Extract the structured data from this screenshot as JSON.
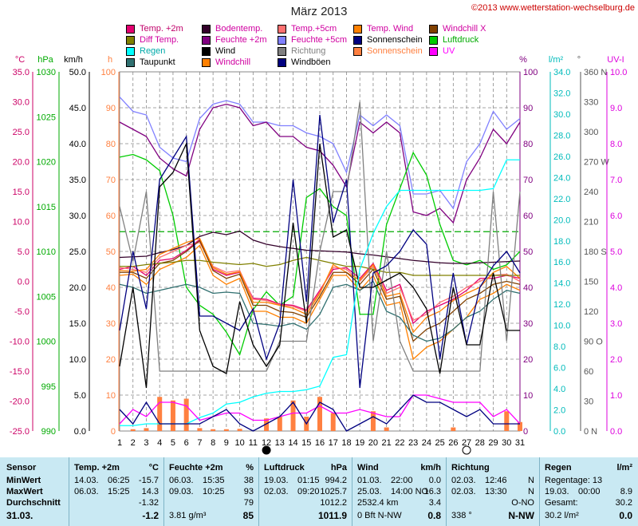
{
  "title": "März 2013",
  "copyright": "©2013 www.wetterstation-wechselburg.de",
  "legend": [
    {
      "label": "Temp. +2m",
      "color": "#e3006f",
      "text": "#c0006a"
    },
    {
      "label": "Bodentemp.",
      "color": "#33002a",
      "text": "#d000a0"
    },
    {
      "label": "Temp.+5cm",
      "color": "#ff7070",
      "text": "#d000a0"
    },
    {
      "label": "Temp. Wind",
      "color": "#ff8000",
      "text": "#d000a0"
    },
    {
      "label": "Windchill X",
      "color": "#804000",
      "text": "#d000a0"
    },
    {
      "label": "Diff Temp.",
      "color": "#808000",
      "text": "#d000a0"
    },
    {
      "label": "Feuchte +2m",
      "color": "#800080",
      "text": "#d000a0"
    },
    {
      "label": "Feuchte +5cm",
      "color": "#8080ff",
      "text": "#d000a0"
    },
    {
      "label": "Sonnenschein",
      "color": "#000080",
      "text": "#000000"
    },
    {
      "label": "Luftdruck",
      "color": "#00cc00",
      "text": "#00aa00"
    },
    {
      "label": "Regen",
      "color": "#00ffff",
      "text": "#00aaaa"
    },
    {
      "label": "Wind",
      "color": "#000000",
      "text": "#000000"
    },
    {
      "label": "Richtung",
      "color": "#808080",
      "text": "#808080"
    },
    {
      "label": "Sonnenschein",
      "color": "#ff8040",
      "text": "#ff8040"
    },
    {
      "label": "UV",
      "color": "#ff00ff",
      "text": "#ff00ff"
    },
    {
      "label": "Taupunkt",
      "color": "#307070",
      "text": "#000000"
    },
    {
      "label": "Windchill",
      "color": "#ff8000",
      "text": "#d000a0"
    },
    {
      "label": "Windböen",
      "color": "#000080",
      "text": "#000000"
    }
  ],
  "axis_headers": {
    "temp": "°C",
    "hpa": "hPa",
    "kmh": "km/h",
    "h": "h",
    "pct": "%",
    "lm2": "l/m²",
    "deg": "°",
    "uv": "UV-I"
  },
  "chart_data": {
    "type": "line",
    "x": [
      1,
      2,
      3,
      4,
      5,
      6,
      7,
      8,
      9,
      10,
      11,
      12,
      13,
      14,
      15,
      16,
      17,
      18,
      19,
      20,
      21,
      22,
      23,
      24,
      25,
      26,
      27,
      28,
      29,
      30,
      31
    ],
    "xlabel": "",
    "axes": {
      "temp": {
        "label": "°C",
        "range": [
          -25,
          35
        ],
        "ticks": [
          "35.0",
          "30.0",
          "25.0",
          "20.0",
          "15.0",
          "10.0",
          "5.0",
          "0.0",
          "-5.0",
          "-10.0",
          "-15.0",
          "-20.0",
          "-25.0"
        ]
      },
      "hpa": {
        "label": "hPa",
        "range": [
          990,
          1030
        ],
        "ticks": [
          "1030",
          "1025",
          "1020",
          "1015",
          "1010",
          "1005",
          "1000",
          "995",
          "990"
        ]
      },
      "kmh": {
        "label": "km/h",
        "range": [
          0,
          50
        ],
        "ticks": [
          "50.0",
          "45.0",
          "40.0",
          "35.0",
          "30.0",
          "25.0",
          "20.0",
          "15.0",
          "10.0",
          "5.0",
          "0.0"
        ]
      },
      "h": {
        "label": "h",
        "range": [
          0,
          100
        ],
        "ticks": [
          "100",
          "90",
          "80",
          "70",
          "60",
          "50",
          "40",
          "30",
          "20",
          "10",
          "0"
        ]
      },
      "pct": {
        "label": "%",
        "range": [
          0,
          100
        ],
        "ticks": [
          "100",
          "90",
          "80",
          "70",
          "60",
          "50",
          "40",
          "30",
          "20",
          "10",
          "0"
        ]
      },
      "lm2": {
        "label": "l/m²",
        "range": [
          0,
          40
        ],
        "ticks": [
          "34.0",
          "32.0",
          "30.0",
          "28.0",
          "26.0",
          "24.0",
          "22.0",
          "20.0",
          "18.0",
          "16.0",
          "14.0",
          "12.0",
          "10.0",
          "8.0",
          "6.0",
          "4.0",
          "2.0",
          "0.0"
        ]
      },
      "deg": {
        "label": "°",
        "range": [
          0,
          360
        ],
        "ticks": [
          "360 N",
          "330",
          "300",
          "270 W",
          "240",
          "210",
          "180 S",
          "150",
          "120",
          "90 O",
          "60",
          "30",
          "0 N"
        ]
      },
      "uv": {
        "label": "UV-I",
        "range": [
          0,
          10
        ],
        "ticks": [
          "10.0",
          "9.0",
          "8.0",
          "7.0",
          "6.0",
          "5.0",
          "4.0",
          "3.0",
          "2.0",
          "1.0",
          "0.0"
        ]
      }
    },
    "reference_line_hpa": 1012.2,
    "series": [
      {
        "name": "Feuchte +5cm",
        "axis": "pct",
        "color": "#8080ff",
        "values": [
          93,
          89,
          88,
          79,
          76,
          75,
          87,
          91,
          92,
          91,
          86,
          86,
          85,
          85,
          83,
          82,
          80,
          72,
          88,
          85,
          88,
          85,
          66,
          66,
          67,
          62,
          75,
          80,
          89,
          84,
          87
        ]
      },
      {
        "name": "Feuchte +2m",
        "axis": "pct",
        "color": "#800080",
        "values": [
          86,
          84,
          82,
          76,
          73,
          71,
          84,
          90,
          91,
          90,
          85,
          86,
          82,
          82,
          79,
          78,
          74,
          68,
          86,
          83,
          86,
          83,
          61,
          60,
          62,
          58,
          70,
          76,
          84,
          80,
          86
        ]
      },
      {
        "name": "Luftdruck",
        "axis": "hpa",
        "color": "#00cc00",
        "values": [
          1020.5,
          1020.8,
          1020.2,
          1019.0,
          1014.0,
          1006.0,
          1004.0,
          1003.0,
          1001.0,
          998.5,
          1003.5,
          1005.5,
          1004.0,
          1005.0,
          1016.0,
          1017.0,
          1015.0,
          1014.0,
          1003.0,
          1003.0,
          1013.0,
          1017.0,
          1021.0,
          1018.5,
          1013.0,
          1009.0,
          1008.5,
          1009.0,
          1008.0,
          1008.5,
          1010.0
        ]
      },
      {
        "name": "Bodentemp.",
        "axis": "temp",
        "color": "#33002a",
        "values": [
          4.0,
          4.1,
          4.2,
          4.8,
          5.3,
          6.0,
          7.5,
          8.2,
          7.8,
          8.4,
          6.9,
          6.2,
          5.8,
          5.5,
          5.2,
          5.1,
          5.0,
          4.9,
          4.6,
          4.4,
          4.1,
          3.8,
          3.5,
          3.3,
          3.1,
          3.0,
          3.0,
          3.1,
          3.2,
          3.3,
          3.4
        ]
      },
      {
        "name": "Temp. +2m",
        "axis": "temp",
        "color": "#e3006f",
        "values": [
          2.0,
          2.5,
          1.0,
          3.5,
          3.8,
          5.2,
          7.0,
          2.0,
          1.0,
          1.5,
          -2.8,
          -3.0,
          -3.8,
          -4.0,
          -4.8,
          -1.5,
          2.0,
          2.3,
          0.5,
          3.0,
          -1.5,
          -0.5,
          -7.0,
          -5.0,
          -4.0,
          -3.0,
          -1.5,
          0.5,
          0.5,
          1.0,
          0.5
        ]
      },
      {
        "name": "Temp.+5cm",
        "axis": "temp",
        "color": "#ff7070",
        "values": [
          2.3,
          2.0,
          1.5,
          4.0,
          5.0,
          6.0,
          6.5,
          2.5,
          1.5,
          1.8,
          -3.0,
          -3.2,
          -3.9,
          -4.2,
          -5.0,
          -1.8,
          2.4,
          2.0,
          0.0,
          2.5,
          -2.0,
          -1.0,
          -6.5,
          -5.5,
          -3.5,
          -2.5,
          -1.0,
          0.0,
          1.0,
          1.2,
          0.0
        ]
      },
      {
        "name": "Temp. Wind",
        "axis": "temp",
        "color": "#ff8000",
        "values": [
          1.8,
          1.7,
          2.0,
          4.5,
          5.5,
          6.5,
          7.2,
          2.3,
          1.2,
          1.6,
          -3.5,
          -3.5,
          -4.0,
          -4.5,
          -5.5,
          -2.0,
          2.8,
          1.5,
          0.2,
          2.8,
          -2.5,
          -2.0,
          -8.5,
          -6.0,
          -5.0,
          -3.2,
          -2.0,
          -1.0,
          1.5,
          2.5,
          0.5
        ]
      },
      {
        "name": "Windchill X",
        "axis": "temp",
        "color": "#804000",
        "values": [
          1.5,
          1.5,
          0.5,
          3.0,
          3.5,
          5.0,
          6.8,
          1.8,
          0.5,
          1.2,
          -4.0,
          -4.0,
          -5.0,
          -5.2,
          -6.0,
          -2.5,
          1.5,
          1.5,
          -0.5,
          2.0,
          -3.0,
          -2.5,
          -10.0,
          -8.0,
          -7.0,
          -5.0,
          -3.0,
          -2.0,
          -0.5,
          0.0,
          -0.5
        ]
      },
      {
        "name": "Windchill",
        "axis": "temp",
        "color": "#ff8000",
        "values": [
          1.0,
          1.2,
          -0.5,
          2.0,
          3.0,
          4.0,
          6.0,
          1.0,
          -0.5,
          0.5,
          -5.0,
          -5.0,
          -6.0,
          -6.0,
          -7.0,
          -3.0,
          1.0,
          1.0,
          -1.5,
          1.0,
          -4.0,
          -3.5,
          -13.0,
          -11.0,
          -10.0,
          -8.0,
          -6.0,
          -3.0,
          -2.0,
          -0.5,
          -1.5
        ]
      },
      {
        "name": "Diff Temp.",
        "axis": "temp",
        "color": "#808000",
        "values": [
          2.5,
          2.5,
          2.8,
          3.0,
          3.2,
          3.5,
          3.5,
          3.2,
          3.0,
          2.8,
          3.0,
          2.5,
          2.8,
          3.5,
          4.0,
          3.5,
          3.0,
          2.5,
          2.5,
          2.0,
          1.5,
          1.5,
          1.0,
          1.0,
          1.0,
          1.0,
          1.0,
          1.0,
          1.0,
          1.0,
          1.0
        ]
      },
      {
        "name": "Taupunkt",
        "axis": "temp",
        "color": "#307070",
        "values": [
          -0.5,
          -1.0,
          -2.0,
          -1.5,
          -1.0,
          -0.5,
          -1.0,
          -2.0,
          -1.8,
          -2.0,
          -7.0,
          -7.2,
          -7.5,
          -7.0,
          -8.0,
          -5.5,
          -1.0,
          -0.5,
          -1.5,
          0.0,
          -5.0,
          -6.0,
          -9.0,
          -10.0,
          -9.5,
          -8.0,
          -6.0,
          -5.0,
          -3.0,
          -1.5,
          -2.0
        ]
      },
      {
        "name": "Richtung",
        "axis": "deg",
        "color": "#808080",
        "values": [
          225,
          170,
          240,
          60,
          60,
          60,
          60,
          60,
          60,
          60,
          60,
          60,
          90,
          90,
          90,
          180,
          240,
          240,
          330,
          90,
          180,
          90,
          60,
          60,
          60,
          60,
          60,
          60,
          240,
          90,
          240
        ]
      },
      {
        "name": "Windböen",
        "axis": "kmh",
        "color": "#000080",
        "values": [
          14,
          25,
          17,
          35,
          38,
          41,
          16,
          16,
          15,
          14,
          17,
          10,
          15,
          35,
          18,
          44,
          29,
          35,
          6,
          22,
          23,
          25,
          28,
          26,
          10,
          22,
          12,
          20,
          23,
          25,
          22
        ]
      },
      {
        "name": "Wind",
        "axis": "kmh",
        "color": "#000000",
        "values": [
          9,
          20,
          6,
          34,
          36,
          40,
          14,
          9,
          8,
          18,
          12,
          9,
          12,
          29,
          15,
          40,
          27,
          28,
          20,
          20,
          21,
          22,
          20,
          17,
          8,
          20,
          12,
          12,
          22,
          14,
          14
        ]
      },
      {
        "name": "Regen",
        "axis": "lm2",
        "color": "#00ffff",
        "values": [
          0.6,
          0.6,
          0.8,
          0.8,
          0.8,
          0.8,
          1.5,
          2.0,
          3.0,
          3.2,
          3.8,
          4.2,
          4.4,
          4.4,
          4.6,
          5.0,
          8.2,
          8.5,
          18.0,
          22.0,
          25.0,
          26.8,
          26.8,
          26.8,
          26.8,
          26.8,
          26.8,
          26.8,
          27.0,
          30.2,
          30.2
        ]
      },
      {
        "name": "UV",
        "axis": "uv",
        "color": "#ff00ff",
        "values": [
          0.2,
          0.6,
          0.4,
          0.8,
          0.8,
          0.7,
          0.3,
          0.4,
          0.5,
          0.5,
          0.3,
          0.3,
          0.4,
          0.5,
          0.5,
          0.7,
          0.5,
          0.5,
          0.6,
          0.5,
          0.4,
          0.4,
          1.0,
          1.0,
          0.9,
          0.8,
          0.8,
          0.8,
          0.4,
          0.6,
          0.2
        ]
      },
      {
        "name": "Sonnenschein",
        "axis": "kmh",
        "color": "#000080",
        "values": [
          3,
          1,
          4,
          1,
          1,
          1,
          1,
          2,
          3,
          1,
          0,
          1,
          2,
          4,
          1,
          4,
          3,
          0,
          1,
          2,
          1,
          3,
          5,
          4,
          4,
          3,
          2,
          3,
          1,
          1,
          1
        ]
      },
      {
        "name": "Sonnenschein h",
        "axis": "h",
        "color": "#ff8040",
        "type": "bar",
        "values": [
          0.0,
          0.5,
          0.8,
          9.5,
          8.5,
          9.0,
          0.8,
          0.5,
          0.5,
          0.6,
          0.0,
          3.5,
          4.0,
          8.5,
          4.0,
          9.5,
          5.0,
          0.0,
          0.0,
          5.5,
          1.0,
          0.0,
          0.0,
          0.0,
          0.0,
          1.0,
          0.0,
          0.0,
          0.0,
          5.5,
          2.5
        ]
      }
    ]
  },
  "table": {
    "sensor": {
      "header": "Sensor",
      "rows": [
        "MinWert",
        "MaxWert",
        "Durchschnitt",
        "31.03."
      ]
    },
    "temp": {
      "header": "Temp. +2m",
      "unit": "°C",
      "rows": [
        [
          "14.03.",
          "06:25",
          "-15.7"
        ],
        [
          "06.03.",
          "15:25",
          "14.3"
        ],
        [
          "",
          "",
          "-1.32"
        ],
        [
          "",
          "",
          "-1.2"
        ]
      ]
    },
    "feuchte": {
      "header": "Feuchte +2m",
      "unit": "%",
      "rows": [
        [
          "06.03.",
          "15:35",
          "38"
        ],
        [
          "09.03.",
          "10:25",
          "93"
        ],
        [
          "",
          "",
          "79"
        ],
        [
          "3.81 g/m³",
          "",
          "85"
        ]
      ]
    },
    "luftdruck": {
      "header": "Luftdruck",
      "unit": "hPa",
      "rows": [
        [
          "19.03.",
          "01:15",
          "994.2"
        ],
        [
          "02.03.",
          "09:20",
          "1025.7"
        ],
        [
          "",
          "",
          "1012.2"
        ],
        [
          "",
          "",
          "1011.9"
        ]
      ]
    },
    "wind": {
      "header": "Wind",
      "unit": "km/h",
      "rows": [
        [
          "01.03.",
          "22:00",
          "0.0"
        ],
        [
          "25.03.",
          "14:00 NO",
          "16.3"
        ],
        [
          "2532.4 km",
          "",
          "3.4"
        ],
        [
          "0 Bft N-NW",
          "",
          "0.8"
        ]
      ]
    },
    "richtung": {
      "header": "Richtung",
      "rows": [
        [
          "02.03.",
          "12:46",
          "N"
        ],
        [
          "02.03.",
          "13:30",
          "N"
        ],
        [
          "",
          "",
          "O-NO"
        ],
        [
          "338 °",
          "",
          "N-NW"
        ]
      ]
    },
    "regen": {
      "header": "Regen",
      "unit": "l/m²",
      "rows": [
        [
          "Regentage: 13",
          ""
        ],
        [
          "19.03.",
          "00:00",
          "8.9"
        ],
        [
          "Gesamt:",
          "",
          "30.2"
        ],
        [
          "30.2 l/m²",
          "",
          "0.0"
        ]
      ]
    }
  }
}
